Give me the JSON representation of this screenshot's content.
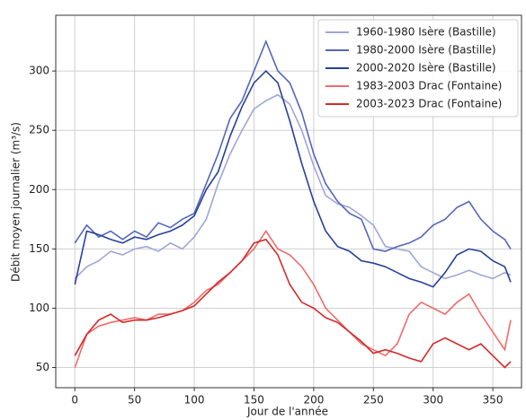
{
  "chart_data": {
    "type": "line",
    "x_label": "Jour de l'année",
    "y_label": "Débit moyen journalier (m³/s)",
    "x": [
      0,
      10,
      20,
      30,
      40,
      50,
      60,
      70,
      80,
      90,
      100,
      110,
      120,
      130,
      140,
      150,
      160,
      170,
      180,
      190,
      200,
      210,
      220,
      230,
      240,
      250,
      260,
      270,
      280,
      290,
      300,
      310,
      320,
      330,
      340,
      350,
      360,
      365
    ],
    "series": [
      {
        "name": "1960-1980 Isère (Bastille)",
        "color": "#9fa6d8",
        "values": [
          125,
          135,
          140,
          148,
          145,
          150,
          152,
          148,
          155,
          150,
          160,
          175,
          205,
          230,
          250,
          268,
          275,
          280,
          272,
          250,
          220,
          195,
          188,
          185,
          178,
          170,
          152,
          150,
          148,
          135,
          130,
          125,
          128,
          132,
          128,
          125,
          130,
          128
        ]
      },
      {
        "name": "1980-2000 Isère (Bastille)",
        "color": "#5566bb",
        "values": [
          155,
          170,
          160,
          165,
          158,
          165,
          160,
          172,
          168,
          175,
          180,
          205,
          230,
          260,
          275,
          300,
          325,
          300,
          290,
          265,
          230,
          205,
          190,
          180,
          175,
          150,
          148,
          152,
          155,
          160,
          170,
          175,
          185,
          190,
          175,
          165,
          158,
          150
        ]
      },
      {
        "name": "2000-2020 Isère (Bastille)",
        "color": "#27409a",
        "values": [
          120,
          165,
          162,
          158,
          155,
          160,
          158,
          162,
          165,
          170,
          178,
          200,
          215,
          245,
          270,
          290,
          300,
          290,
          258,
          222,
          190,
          165,
          152,
          148,
          140,
          138,
          135,
          130,
          125,
          122,
          118,
          130,
          145,
          150,
          148,
          140,
          135,
          122
        ]
      },
      {
        "name": "1983-2003 Drac (Fontaine)",
        "color": "#ef6b6b",
        "values": [
          50,
          78,
          85,
          88,
          90,
          92,
          90,
          95,
          95,
          98,
          105,
          115,
          120,
          130,
          140,
          150,
          165,
          150,
          145,
          135,
          120,
          100,
          90,
          80,
          70,
          65,
          60,
          70,
          95,
          105,
          100,
          95,
          105,
          112,
          95,
          80,
          65,
          90
        ]
      },
      {
        "name": "2003-2023 Drac (Fontaine)",
        "color": "#d42a2a",
        "values": [
          60,
          78,
          90,
          95,
          88,
          90,
          90,
          92,
          95,
          98,
          102,
          112,
          122,
          130,
          140,
          155,
          158,
          145,
          120,
          105,
          100,
          92,
          88,
          80,
          72,
          62,
          65,
          62,
          58,
          55,
          70,
          75,
          70,
          65,
          70,
          60,
          50,
          55
        ]
      }
    ],
    "xlim": [
      -16,
      374
    ],
    "ylim": [
      33,
      347
    ],
    "xticks": [
      0,
      50,
      100,
      150,
      200,
      250,
      300,
      350
    ],
    "yticks": [
      50,
      100,
      150,
      200,
      250,
      300
    ],
    "grid": true,
    "legend": "upper right"
  }
}
